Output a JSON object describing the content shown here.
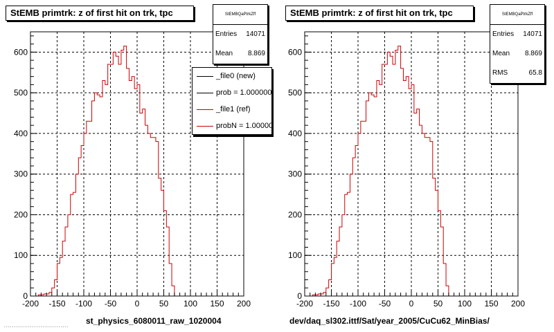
{
  "footer_text": "................................",
  "colors": {
    "new": "#000000",
    "ref": "#cc0000"
  },
  "chart_data": [
    {
      "type": "histogram",
      "title": "StEMB primtrk: z of first hit on trk, tpc",
      "xlabel": "st_physics_6080011_raw_1020004",
      "xlim": [
        -200,
        200
      ],
      "ylim": [
        0,
        650
      ],
      "xticks": [
        -200,
        -150,
        -100,
        -50,
        0,
        50,
        100,
        150,
        200
      ],
      "yticks": [
        0,
        100,
        200,
        300,
        400,
        500,
        600
      ],
      "grid": true,
      "bin_width": 5,
      "stats": {
        "name": "StEMBQaPtrkZff",
        "entries": "14071",
        "mean": "8.869"
      },
      "legend": {
        "placement": "top-right",
        "entries": [
          {
            "label": "_file0 (new)",
            "color": "#000000"
          },
          {
            "label": "prob = 1.000000",
            "color": "#000000"
          },
          {
            "label": "_file1 (ref)",
            "color": "#cc0000"
          },
          {
            "label": "probN = 1.000000",
            "color": "#cc0000"
          }
        ]
      },
      "series": [
        {
          "name": "_file1 (ref)",
          "x_start": -195,
          "values": [
            0,
            0,
            3,
            3,
            5,
            5,
            9,
            20,
            40,
            80,
            95,
            135,
            170,
            200,
            250,
            255,
            300,
            340,
            370,
            400,
            430,
            430,
            480,
            500,
            495,
            490,
            530,
            520,
            570,
            570,
            600,
            590,
            570,
            605,
            615,
            560,
            530,
            540,
            510,
            520,
            450,
            460,
            420,
            400,
            390,
            390,
            380,
            290,
            260,
            210,
            170,
            80,
            25,
            0,
            0,
            0,
            0,
            0
          ]
        }
      ]
    },
    {
      "type": "histogram",
      "title": "StEMB primtrk: z of first hit on trk, tpc",
      "xlabel": "dev/daq_sl302.ittf/Sat/year_2005/CuCu62_MinBias/",
      "xlim": [
        -200,
        200
      ],
      "ylim": [
        0,
        650
      ],
      "xticks": [
        -200,
        -150,
        -100,
        -50,
        0,
        50,
        100,
        150,
        200
      ],
      "yticks": [
        0,
        100,
        200,
        300,
        400,
        500,
        600
      ],
      "grid": true,
      "bin_width": 5,
      "stats": {
        "name": "StEMBQaPtrkZff",
        "entries": "14071",
        "mean": "8.869",
        "rms": "65.8"
      },
      "series": [
        {
          "name": "",
          "x_start": -195,
          "values": [
            0,
            0,
            3,
            3,
            5,
            5,
            9,
            20,
            40,
            80,
            95,
            135,
            170,
            200,
            250,
            255,
            300,
            340,
            370,
            400,
            430,
            430,
            480,
            500,
            495,
            490,
            530,
            520,
            570,
            570,
            600,
            590,
            570,
            605,
            615,
            560,
            530,
            540,
            510,
            520,
            450,
            460,
            420,
            400,
            390,
            390,
            380,
            290,
            260,
            210,
            170,
            80,
            25,
            0,
            0,
            0,
            0,
            0
          ]
        }
      ]
    }
  ]
}
